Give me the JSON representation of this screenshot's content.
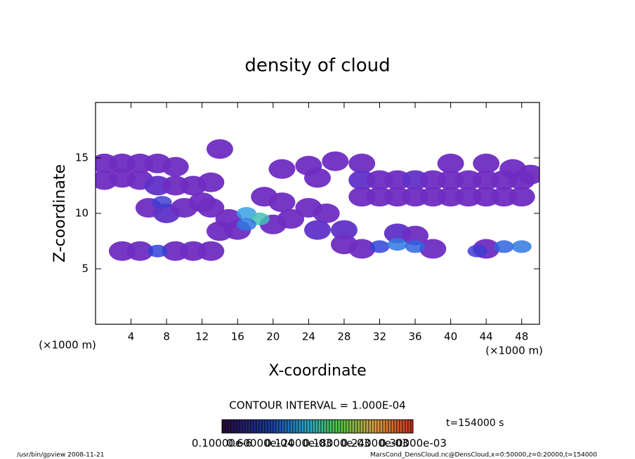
{
  "chart_data": {
    "type": "contour",
    "title": "density of cloud",
    "xlabel": "X-coordinate",
    "ylabel": "Z-coordinate",
    "x_unit": "(×1000 m)",
    "y_unit": "(×1000 m)",
    "contour_interval": "CONTOUR INTERVAL = 1.000E-04",
    "time_label": "t=154000 s",
    "colorbar_labels": [
      "0.10000e-6",
      "0.60000e-04",
      "0.12000e-03",
      "0.18000e-03",
      "0.24000e-03",
      "0.30000e-03"
    ],
    "footer_left": "/usr/bin/gpview  2008-11-21",
    "footer_right": "MarsCond_DensCloud.nc@DensCloud,x=0:50000,z=0:20000,t=154000",
    "xlim": [
      0,
      50
    ],
    "ylim": [
      0,
      20
    ],
    "xticks": [
      4,
      8,
      12,
      16,
      20,
      24,
      28,
      32,
      36,
      40,
      44,
      48
    ],
    "yticks": [
      5,
      10,
      15
    ],
    "x": [
      1,
      3,
      5,
      7,
      9,
      1,
      3,
      5,
      7,
      9,
      11,
      13,
      6,
      8,
      10,
      12,
      13,
      3,
      5,
      9,
      11,
      13,
      15,
      14,
      16,
      20,
      22,
      24,
      26,
      25,
      21,
      19,
      14,
      21,
      24,
      27,
      25,
      30,
      30,
      32,
      34,
      36,
      38,
      40,
      42,
      44,
      46,
      48,
      30,
      32,
      34,
      36,
      38,
      40,
      42,
      44,
      46,
      48,
      40,
      44,
      47,
      49,
      30,
      38,
      28,
      28,
      34,
      36,
      44,
      7.5,
      17,
      18.5,
      17,
      7,
      32,
      34,
      36,
      46,
      48,
      43
    ],
    "z": [
      14.5,
      14.5,
      14.5,
      14.5,
      14.2,
      13,
      13.2,
      13,
      12.5,
      12.5,
      12.5,
      12.8,
      10.5,
      10,
      10.5,
      11,
      10.5,
      6.6,
      6.6,
      6.6,
      6.6,
      6.6,
      9.5,
      8.4,
      8.5,
      9,
      9.5,
      10.5,
      10,
      8.5,
      11,
      11.5,
      15.8,
      14,
      14.3,
      14.7,
      13.2,
      14.5,
      13,
      13,
      13,
      13,
      13,
      13,
      13,
      13,
      13,
      13,
      11.5,
      11.5,
      11.5,
      11.5,
      11.5,
      11.5,
      11.5,
      11.5,
      11.5,
      11.5,
      14.5,
      14.5,
      14,
      13.5,
      6.8,
      6.8,
      8.5,
      7.2,
      8.2,
      8,
      6.8,
      11,
      10,
      9.5,
      9,
      6.6,
      7,
      7.2,
      7,
      7,
      7,
      6.6
    ],
    "values": [
      3e-05,
      3e-05,
      3e-05,
      3e-05,
      3e-05,
      3e-05,
      3e-05,
      3e-05,
      4e-05,
      3e-05,
      3e-05,
      3e-05,
      3e-05,
      4e-05,
      3e-05,
      3e-05,
      3e-05,
      3e-05,
      3e-05,
      3e-05,
      3e-05,
      3e-05,
      3e-05,
      3e-05,
      3e-05,
      3e-05,
      3e-05,
      3e-05,
      3e-05,
      4e-05,
      3e-05,
      3e-05,
      3e-05,
      3e-05,
      3e-05,
      3e-05,
      3e-05,
      3e-05,
      4e-05,
      3e-05,
      3e-05,
      4e-05,
      3e-05,
      3e-05,
      3e-05,
      3e-05,
      3e-05,
      3e-05,
      3e-05,
      3e-05,
      3e-05,
      3e-05,
      3e-05,
      3e-05,
      3e-05,
      3e-05,
      3e-05,
      3e-05,
      3e-05,
      3e-05,
      3e-05,
      3e-05,
      3e-05,
      3e-05,
      4e-05,
      3e-05,
      4e-05,
      3e-05,
      3e-05,
      6e-05,
      0.00012,
      0.00015,
      0.0001,
      7e-05,
      7e-05,
      0.0001,
      9e-05,
      9e-05,
      0.0001,
      6e-05
    ],
    "colorbar_range": [
      0,
      0.0003
    ]
  }
}
